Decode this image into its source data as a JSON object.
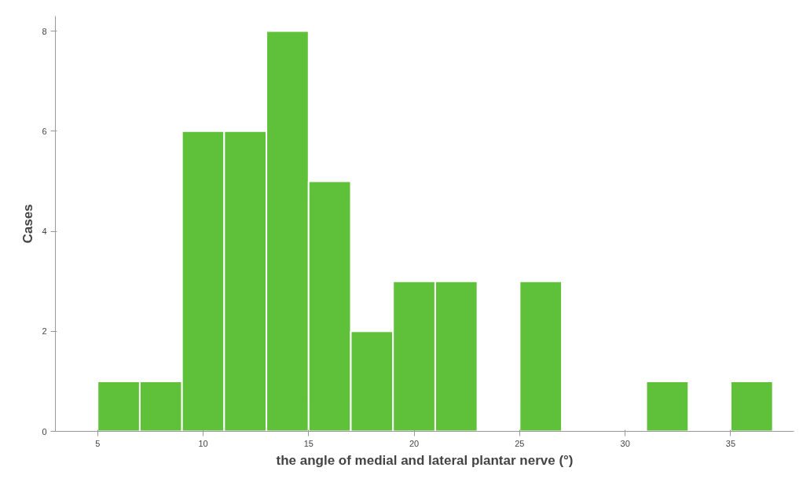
{
  "chart_data": {
    "type": "histogram",
    "xlabel": "the angle of medial and lateral plantar nerve (°)",
    "ylabel": "Cases",
    "bins": [
      5,
      7,
      9,
      11,
      13,
      15,
      17,
      19,
      21,
      23,
      25,
      27,
      29,
      31,
      33,
      35,
      37
    ],
    "values": [
      1,
      1,
      6,
      6,
      8,
      5,
      2,
      3,
      3,
      0,
      3,
      0,
      0,
      1,
      0,
      1
    ],
    "color": "#5fc13a",
    "xlim": [
      3,
      38
    ],
    "ylim": [
      0,
      8.3
    ],
    "xticks": [
      5,
      10,
      15,
      20,
      25,
      30,
      35
    ],
    "yticks": [
      0,
      2,
      4,
      6,
      8
    ],
    "grid": false
  }
}
